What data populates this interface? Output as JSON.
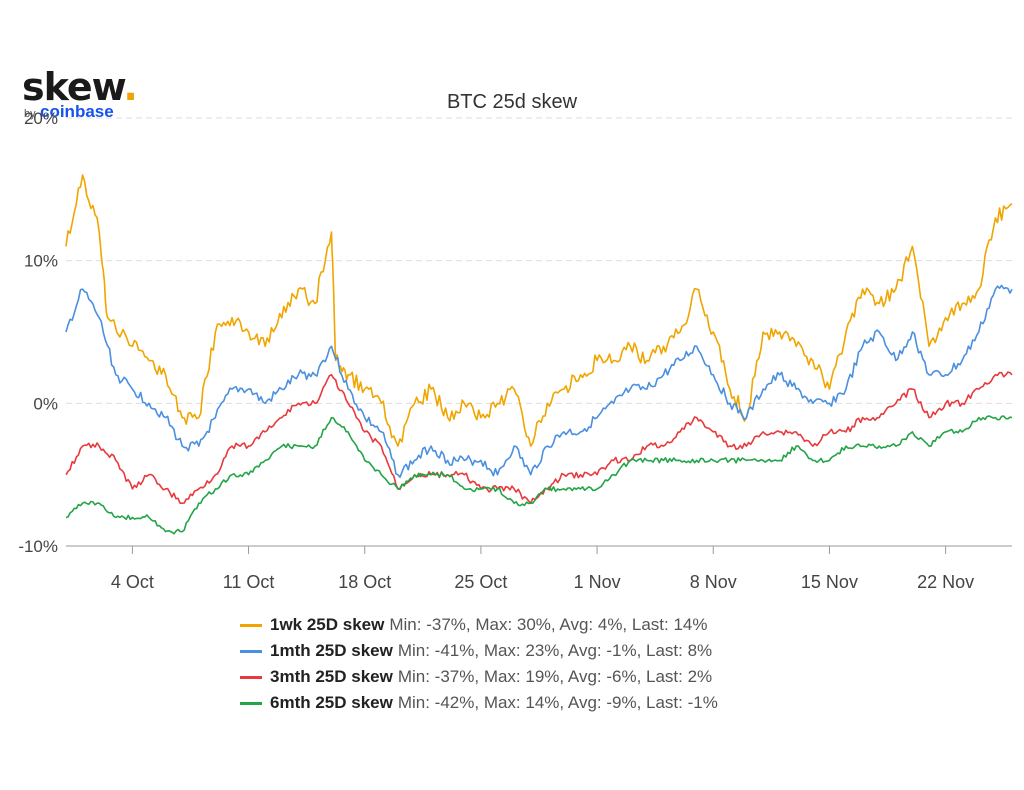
{
  "logo": {
    "text": "skew",
    "dot": ".",
    "by": "by",
    "brand": "coinbase"
  },
  "chart_data": {
    "type": "line",
    "title": "BTC 25d skew",
    "xlabel": "",
    "ylabel": "",
    "ylim": [
      -10,
      20
    ],
    "y_ticks": [
      "20%",
      "10%",
      "0%",
      "-10%"
    ],
    "y_tick_values": [
      20,
      10,
      0,
      -10
    ],
    "x_range": [
      "2021-09-30",
      "2021-11-26"
    ],
    "x_ticks": [
      "4 Oct",
      "11 Oct",
      "18 Oct",
      "25 Oct",
      "1 Nov",
      "8 Nov",
      "15 Nov",
      "22 Nov"
    ],
    "x_tick_dates": [
      "2021-10-04",
      "2021-10-11",
      "2021-10-18",
      "2021-10-25",
      "2021-11-01",
      "2021-11-08",
      "2021-11-15",
      "2021-11-22"
    ],
    "grid": "horizontal dashed",
    "legend_position": "bottom",
    "series": [
      {
        "name": "1wk 25D skew",
        "stats": "Min: -37%, Max: 30%, Avg: 4%, Last: 14%",
        "color": "#f0a500",
        "points": [
          [
            "2021-09-30",
            11
          ],
          [
            "2021-10-01",
            16
          ],
          [
            "2021-10-02",
            12
          ],
          [
            "2021-10-02T12:00",
            6
          ],
          [
            "2021-10-04",
            4
          ],
          [
            "2021-10-05",
            3
          ],
          [
            "2021-10-06",
            2
          ],
          [
            "2021-10-07",
            -1
          ],
          [
            "2021-10-08",
            -1
          ],
          [
            "2021-10-09",
            5
          ],
          [
            "2021-10-10",
            6
          ],
          [
            "2021-10-11",
            5
          ],
          [
            "2021-10-12",
            4
          ],
          [
            "2021-10-13",
            6
          ],
          [
            "2021-10-14",
            8
          ],
          [
            "2021-10-15",
            7
          ],
          [
            "2021-10-16",
            12
          ],
          [
            "2021-10-16T06:00",
            3
          ],
          [
            "2021-10-17",
            2
          ],
          [
            "2021-10-18",
            1
          ],
          [
            "2021-10-19",
            0
          ],
          [
            "2021-10-20",
            -3
          ],
          [
            "2021-10-21",
            0
          ],
          [
            "2021-10-22",
            1
          ],
          [
            "2021-10-23",
            -1
          ],
          [
            "2021-10-24",
            0
          ],
          [
            "2021-10-25",
            -1
          ],
          [
            "2021-10-26",
            0
          ],
          [
            "2021-10-27",
            1
          ],
          [
            "2021-10-28",
            -3
          ],
          [
            "2021-10-29",
            0
          ],
          [
            "2021-10-30",
            1
          ],
          [
            "2021-10-31",
            2
          ],
          [
            "2021-11-01",
            3
          ],
          [
            "2021-11-02",
            3
          ],
          [
            "2021-11-03",
            4
          ],
          [
            "2021-11-04",
            3
          ],
          [
            "2021-11-05",
            4
          ],
          [
            "2021-11-06",
            5
          ],
          [
            "2021-11-07",
            8
          ],
          [
            "2021-11-08",
            5
          ],
          [
            "2021-11-09",
            1
          ],
          [
            "2021-11-10",
            -1
          ],
          [
            "2021-11-11",
            5
          ],
          [
            "2021-11-12",
            5
          ],
          [
            "2021-11-13",
            4
          ],
          [
            "2021-11-14",
            3
          ],
          [
            "2021-11-15",
            1
          ],
          [
            "2021-11-16",
            5
          ],
          [
            "2021-11-17",
            8
          ],
          [
            "2021-11-18",
            7
          ],
          [
            "2021-11-19",
            8
          ],
          [
            "2021-11-20",
            11
          ],
          [
            "2021-11-21",
            4
          ],
          [
            "2021-11-22",
            6
          ],
          [
            "2021-11-23",
            7
          ],
          [
            "2021-11-24",
            8
          ],
          [
            "2021-11-25",
            13
          ],
          [
            "2021-11-26",
            14
          ]
        ]
      },
      {
        "name": "1mth 25D skew",
        "stats": "Min: -41%, Max: 23%, Avg: -1%, Last: 8%",
        "color": "#4a8fe0",
        "points": [
          [
            "2021-09-30",
            5
          ],
          [
            "2021-10-01",
            8
          ],
          [
            "2021-10-02",
            6
          ],
          [
            "2021-10-03",
            2
          ],
          [
            "2021-10-04",
            1
          ],
          [
            "2021-10-05",
            0
          ],
          [
            "2021-10-06",
            -1
          ],
          [
            "2021-10-07",
            -3
          ],
          [
            "2021-10-08",
            -3
          ],
          [
            "2021-10-09",
            -1
          ],
          [
            "2021-10-10",
            1
          ],
          [
            "2021-10-11",
            1
          ],
          [
            "2021-10-12",
            0
          ],
          [
            "2021-10-13",
            1
          ],
          [
            "2021-10-14",
            2
          ],
          [
            "2021-10-15",
            2
          ],
          [
            "2021-10-16",
            4
          ],
          [
            "2021-10-17",
            1
          ],
          [
            "2021-10-18",
            -1
          ],
          [
            "2021-10-19",
            -2
          ],
          [
            "2021-10-20",
            -5
          ],
          [
            "2021-10-21",
            -4
          ],
          [
            "2021-10-22",
            -3
          ],
          [
            "2021-10-23",
            -4
          ],
          [
            "2021-10-24",
            -4
          ],
          [
            "2021-10-25",
            -4
          ],
          [
            "2021-10-26",
            -5
          ],
          [
            "2021-10-27",
            -3
          ],
          [
            "2021-10-28",
            -5
          ],
          [
            "2021-10-29",
            -3
          ],
          [
            "2021-10-30",
            -2
          ],
          [
            "2021-10-31",
            -2
          ],
          [
            "2021-11-01",
            -1
          ],
          [
            "2021-11-02",
            0
          ],
          [
            "2021-11-03",
            1
          ],
          [
            "2021-11-04",
            1
          ],
          [
            "2021-11-05",
            2
          ],
          [
            "2021-11-06",
            3
          ],
          [
            "2021-11-07",
            4
          ],
          [
            "2021-11-08",
            2
          ],
          [
            "2021-11-09",
            0
          ],
          [
            "2021-11-10",
            -1
          ],
          [
            "2021-11-11",
            1
          ],
          [
            "2021-11-12",
            2
          ],
          [
            "2021-11-13",
            1
          ],
          [
            "2021-11-14",
            0
          ],
          [
            "2021-11-15",
            0
          ],
          [
            "2021-11-16",
            1
          ],
          [
            "2021-11-17",
            4
          ],
          [
            "2021-11-18",
            5
          ],
          [
            "2021-11-19",
            3
          ],
          [
            "2021-11-20",
            5
          ],
          [
            "2021-11-21",
            2
          ],
          [
            "2021-11-22",
            2
          ],
          [
            "2021-11-23",
            3
          ],
          [
            "2021-11-24",
            5
          ],
          [
            "2021-11-25",
            8
          ],
          [
            "2021-11-26",
            8
          ]
        ]
      },
      {
        "name": "3mth 25D skew",
        "stats": "Min: -37%, Max: 19%, Avg: -6%, Last: 2%",
        "color": "#e8393d",
        "points": [
          [
            "2021-09-30",
            -5
          ],
          [
            "2021-10-01",
            -3
          ],
          [
            "2021-10-02",
            -3
          ],
          [
            "2021-10-03",
            -4
          ],
          [
            "2021-10-04",
            -6
          ],
          [
            "2021-10-05",
            -5
          ],
          [
            "2021-10-06",
            -6
          ],
          [
            "2021-10-07",
            -7
          ],
          [
            "2021-10-08",
            -6
          ],
          [
            "2021-10-09",
            -5
          ],
          [
            "2021-10-10",
            -3
          ],
          [
            "2021-10-11",
            -3
          ],
          [
            "2021-10-12",
            -2
          ],
          [
            "2021-10-13",
            -1
          ],
          [
            "2021-10-14",
            0
          ],
          [
            "2021-10-15",
            0
          ],
          [
            "2021-10-16",
            2
          ],
          [
            "2021-10-17",
            0
          ],
          [
            "2021-10-18",
            -2
          ],
          [
            "2021-10-19",
            -3
          ],
          [
            "2021-10-20",
            -6
          ],
          [
            "2021-10-21",
            -5
          ],
          [
            "2021-10-22",
            -5
          ],
          [
            "2021-10-23",
            -5
          ],
          [
            "2021-10-24",
            -5
          ],
          [
            "2021-10-25",
            -6
          ],
          [
            "2021-10-26",
            -6
          ],
          [
            "2021-10-27",
            -6
          ],
          [
            "2021-10-28",
            -7
          ],
          [
            "2021-10-29",
            -6
          ],
          [
            "2021-10-30",
            -5
          ],
          [
            "2021-10-31",
            -5
          ],
          [
            "2021-11-01",
            -5
          ],
          [
            "2021-11-02",
            -4
          ],
          [
            "2021-11-03",
            -4
          ],
          [
            "2021-11-04",
            -3
          ],
          [
            "2021-11-05",
            -3
          ],
          [
            "2021-11-06",
            -2
          ],
          [
            "2021-11-07",
            -1
          ],
          [
            "2021-11-08",
            -2
          ],
          [
            "2021-11-09",
            -3
          ],
          [
            "2021-11-10",
            -3
          ],
          [
            "2021-11-11",
            -2
          ],
          [
            "2021-11-12",
            -2
          ],
          [
            "2021-11-13",
            -2
          ],
          [
            "2021-11-14",
            -3
          ],
          [
            "2021-11-15",
            -2
          ],
          [
            "2021-11-16",
            -2
          ],
          [
            "2021-11-17",
            -1
          ],
          [
            "2021-11-18",
            -1
          ],
          [
            "2021-11-19",
            0
          ],
          [
            "2021-11-20",
            1
          ],
          [
            "2021-11-21",
            -1
          ],
          [
            "2021-11-22",
            0
          ],
          [
            "2021-11-23",
            0
          ],
          [
            "2021-11-24",
            1
          ],
          [
            "2021-11-25",
            2
          ],
          [
            "2021-11-26",
            2
          ]
        ]
      },
      {
        "name": "6mth 25D skew",
        "stats": "Min: -42%, Max: 14%, Avg: -9%, Last: -1%",
        "color": "#22a447",
        "points": [
          [
            "2021-09-30",
            -8
          ],
          [
            "2021-10-01",
            -7
          ],
          [
            "2021-10-02",
            -7
          ],
          [
            "2021-10-03",
            -8
          ],
          [
            "2021-10-04",
            -8
          ],
          [
            "2021-10-05",
            -8
          ],
          [
            "2021-10-06",
            -9
          ],
          [
            "2021-10-07",
            -9
          ],
          [
            "2021-10-08",
            -7
          ],
          [
            "2021-10-09",
            -6
          ],
          [
            "2021-10-10",
            -5
          ],
          [
            "2021-10-11",
            -5
          ],
          [
            "2021-10-12",
            -4
          ],
          [
            "2021-10-13",
            -3
          ],
          [
            "2021-10-14",
            -3
          ],
          [
            "2021-10-15",
            -3
          ],
          [
            "2021-10-16",
            -1
          ],
          [
            "2021-10-17",
            -2
          ],
          [
            "2021-10-18",
            -4
          ],
          [
            "2021-10-19",
            -5
          ],
          [
            "2021-10-20",
            -6
          ],
          [
            "2021-10-21",
            -5
          ],
          [
            "2021-10-22",
            -5
          ],
          [
            "2021-10-23",
            -5
          ],
          [
            "2021-10-24",
            -6
          ],
          [
            "2021-10-25",
            -6
          ],
          [
            "2021-10-26",
            -6
          ],
          [
            "2021-10-27",
            -7
          ],
          [
            "2021-10-28",
            -7
          ],
          [
            "2021-10-29",
            -6
          ],
          [
            "2021-10-30",
            -6
          ],
          [
            "2021-10-31",
            -6
          ],
          [
            "2021-11-01",
            -6
          ],
          [
            "2021-11-02",
            -5
          ],
          [
            "2021-11-03",
            -4
          ],
          [
            "2021-11-04",
            -4
          ],
          [
            "2021-11-05",
            -4
          ],
          [
            "2021-11-06",
            -4
          ],
          [
            "2021-11-07",
            -4
          ],
          [
            "2021-11-08",
            -4
          ],
          [
            "2021-11-09",
            -4
          ],
          [
            "2021-11-10",
            -4
          ],
          [
            "2021-11-11",
            -4
          ],
          [
            "2021-11-12",
            -4
          ],
          [
            "2021-11-13",
            -3
          ],
          [
            "2021-11-14",
            -4
          ],
          [
            "2021-11-15",
            -4
          ],
          [
            "2021-11-16",
            -3
          ],
          [
            "2021-11-17",
            -3
          ],
          [
            "2021-11-18",
            -3
          ],
          [
            "2021-11-19",
            -3
          ],
          [
            "2021-11-20",
            -2
          ],
          [
            "2021-11-21",
            -3
          ],
          [
            "2021-11-22",
            -2
          ],
          [
            "2021-11-23",
            -2
          ],
          [
            "2021-11-24",
            -1
          ],
          [
            "2021-11-25",
            -1
          ],
          [
            "2021-11-26",
            -1
          ]
        ]
      }
    ]
  }
}
